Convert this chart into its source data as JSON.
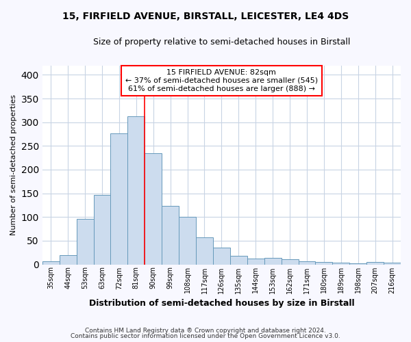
{
  "title": "15, FIRFIELD AVENUE, BIRSTALL, LEICESTER, LE4 4DS",
  "subtitle": "Size of property relative to semi-detached houses in Birstall",
  "xlabel": "Distribution of semi-detached houses by size in Birstall",
  "ylabel": "Number of semi-detached properties",
  "bar_labels": [
    "35sqm",
    "44sqm",
    "53sqm",
    "63sqm",
    "72sqm",
    "81sqm",
    "90sqm",
    "99sqm",
    "108sqm",
    "117sqm",
    "126sqm",
    "135sqm",
    "144sqm",
    "153sqm",
    "162sqm",
    "171sqm",
    "180sqm",
    "189sqm",
    "198sqm",
    "207sqm",
    "216sqm"
  ],
  "bar_values": [
    6,
    19,
    96,
    147,
    277,
    312,
    235,
    124,
    100,
    57,
    36,
    18,
    13,
    14,
    11,
    7,
    5,
    3,
    2,
    5,
    4
  ],
  "bar_color": "#ccdcee",
  "bar_edge_color": "#6699bb",
  "grid_color": "#c8d4e4",
  "background_color": "#ffffff",
  "fig_background_color": "#f8f8ff",
  "vline_x": 5.5,
  "vline_color": "red",
  "annotation_title": "15 FIRFIELD AVENUE: 82sqm",
  "annotation_line1": "← 37% of semi-detached houses are smaller (545)",
  "annotation_line2": "61% of semi-detached houses are larger (888) →",
  "annotation_box_color": "white",
  "annotation_box_edge": "red",
  "footnote1": "Contains HM Land Registry data ® Crown copyright and database right 2024.",
  "footnote2": "Contains public sector information licensed under the Open Government Licence v3.0.",
  "ylim": [
    0,
    420
  ],
  "yticks": [
    0,
    50,
    100,
    150,
    200,
    250,
    300,
    350,
    400
  ]
}
